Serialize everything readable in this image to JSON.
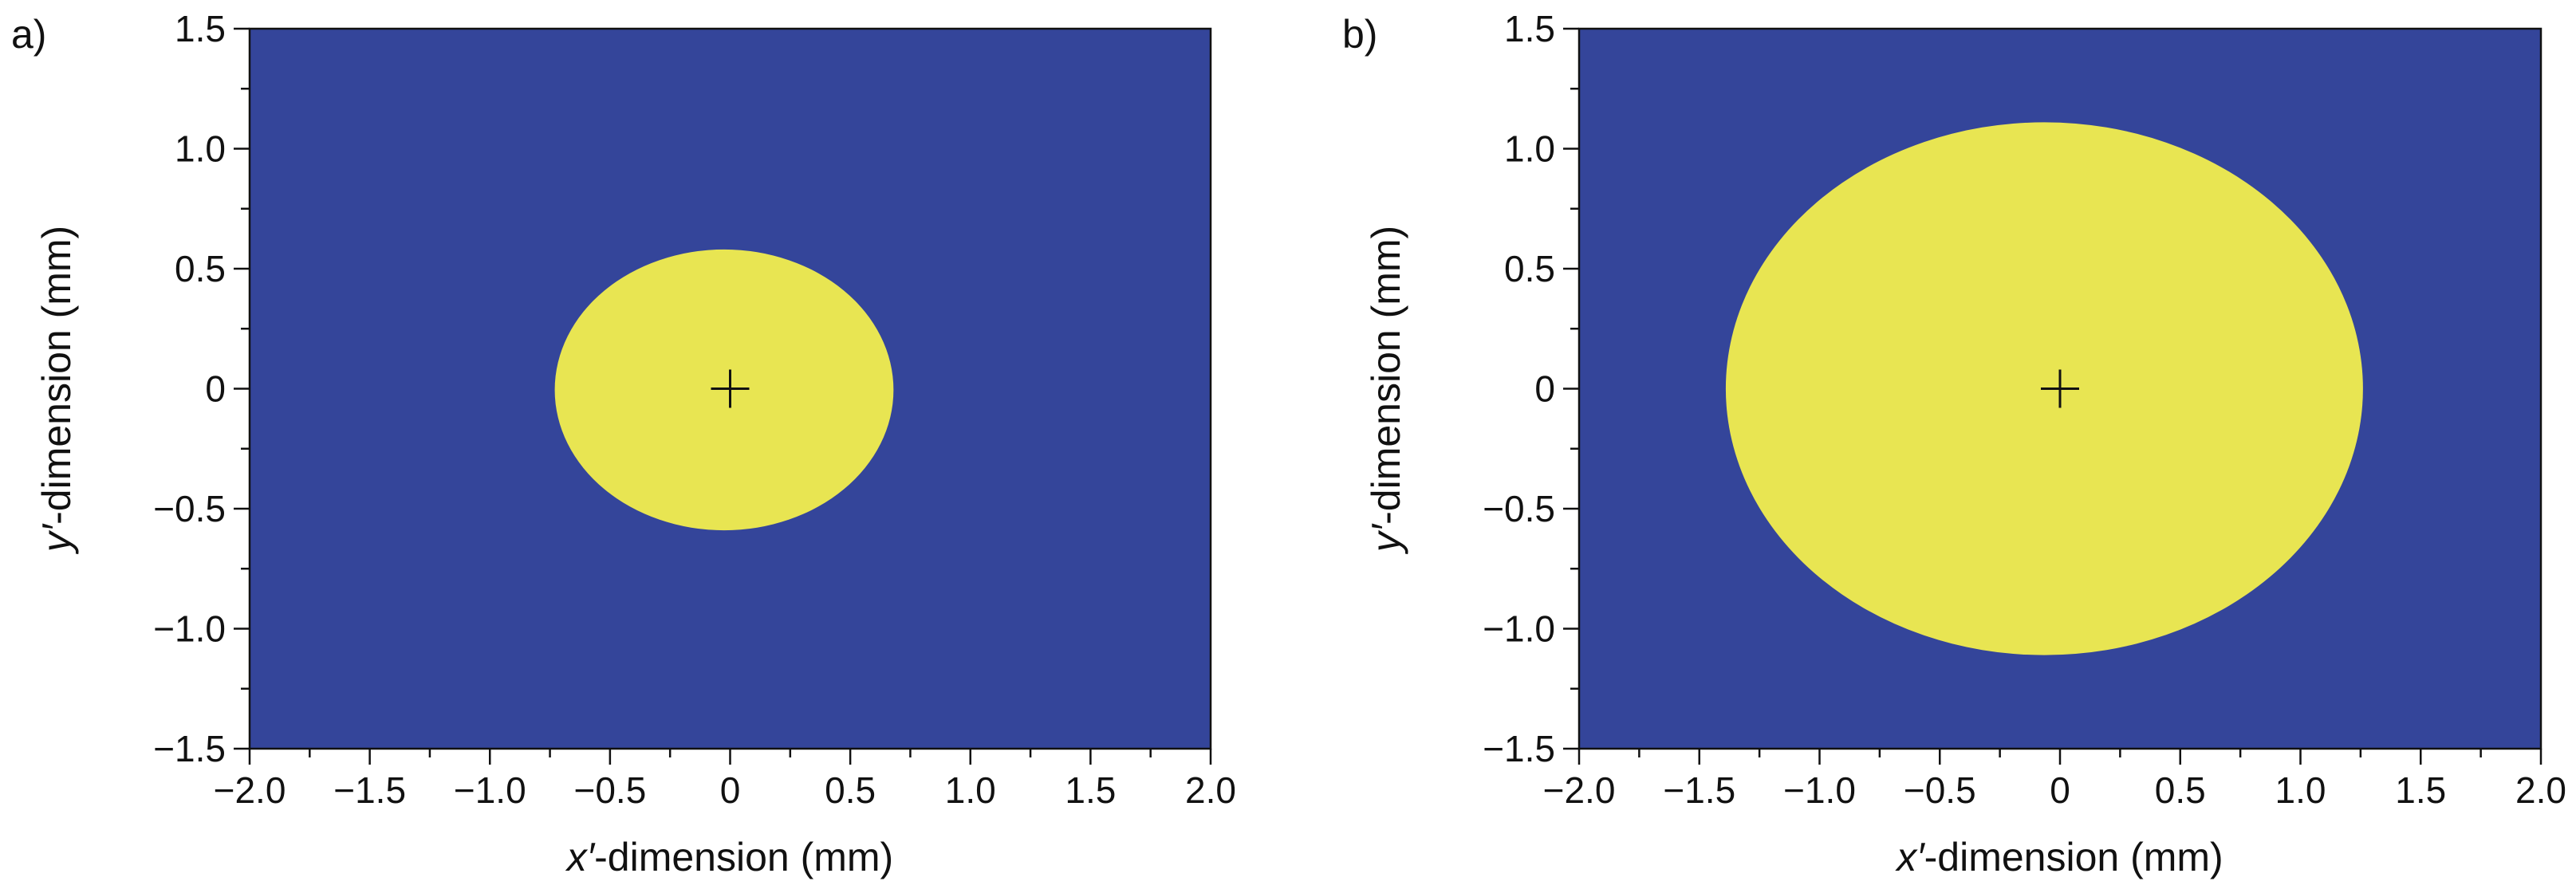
{
  "chart_data": [
    {
      "type": "heatmap",
      "panel": "a)",
      "title": "",
      "xlabel": {
        "symbol": "x′",
        "text": "-dimension (mm)"
      },
      "ylabel": {
        "symbol": "y′",
        "text": "-dimension (mm)"
      },
      "xlim": [
        -2.0,
        2.0
      ],
      "ylim": [
        -1.5,
        1.5
      ],
      "xticks": [
        -2.0,
        -1.5,
        -1.0,
        -0.5,
        0,
        0.5,
        1.0,
        1.5,
        2.0
      ],
      "xtick_labels": [
        "−2.0",
        "−1.5",
        "−1.0",
        "−0.5",
        "0",
        "0.5",
        "1.0",
        "1.5",
        "2.0"
      ],
      "yticks": [
        -1.5,
        -1.0,
        -0.5,
        0,
        0.5,
        1.0,
        1.5
      ],
      "ytick_labels": [
        "−1.5",
        "−1.0",
        "−0.5",
        "0",
        "0.5",
        "1.0",
        "1.5"
      ],
      "region": {
        "shape": "ellipse",
        "cx": 0,
        "cy": 0,
        "x_min": -0.73,
        "x_max": 0.68,
        "y_min": -0.59,
        "y_max": 0.58
      },
      "center_marker": {
        "x": 0,
        "y": 0,
        "symbol": "+"
      },
      "colors": {
        "background": "#34459a",
        "region": "#e8e552",
        "marker": "#111111"
      }
    },
    {
      "type": "heatmap",
      "panel": "b)",
      "title": "",
      "xlabel": {
        "symbol": "x′",
        "text": "-dimension (mm)"
      },
      "ylabel": {
        "symbol": "y′",
        "text": "-dimension (mm)"
      },
      "xlim": [
        -2.0,
        2.0
      ],
      "ylim": [
        -1.5,
        1.5
      ],
      "xticks": [
        -2.0,
        -1.5,
        -1.0,
        -0.5,
        0,
        0.5,
        1.0,
        1.5,
        2.0
      ],
      "xtick_labels": [
        "−2.0",
        "−1.5",
        "−1.0",
        "−0.5",
        "0",
        "0.5",
        "1.0",
        "1.5",
        "2.0"
      ],
      "yticks": [
        -1.5,
        -1.0,
        -0.5,
        0,
        0.5,
        1.0,
        1.5
      ],
      "ytick_labels": [
        "−1.5",
        "−1.0",
        "−0.5",
        "0",
        "0.5",
        "1.0",
        "1.5"
      ],
      "region": {
        "shape": "ellipse",
        "cx": 0,
        "cy": 0,
        "x_min": -1.39,
        "x_max": 1.26,
        "y_min": -1.11,
        "y_max": 1.11
      },
      "center_marker": {
        "x": 0,
        "y": 0,
        "symbol": "+"
      },
      "colors": {
        "background": "#34459a",
        "region": "#e8e552",
        "marker": "#111111"
      }
    }
  ]
}
